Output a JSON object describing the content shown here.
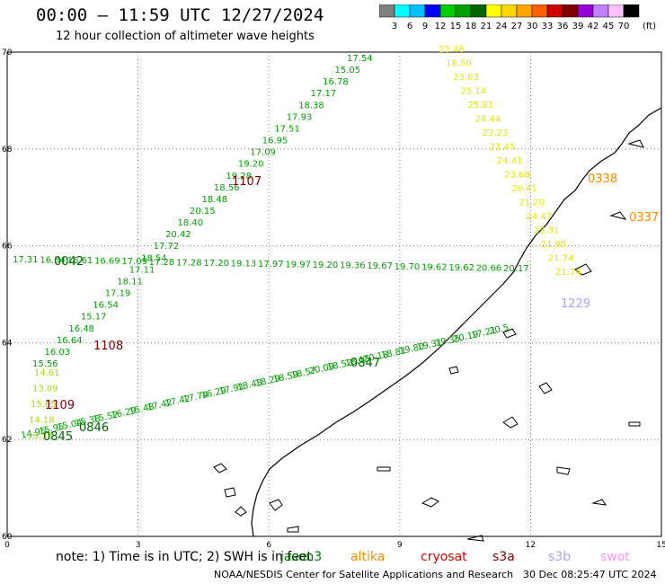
{
  "header": {
    "title": "00:00 – 11:59 UTC 12/27/2024",
    "subtitle": "12 hour collection of altimeter wave heights"
  },
  "colorbar": {
    "ticks": [
      "3",
      "6",
      "9",
      "12",
      "15",
      "18",
      "21",
      "24",
      "27",
      "30",
      "33",
      "36",
      "39",
      "42",
      "45",
      "70"
    ],
    "unit": "(ft)",
    "colors": [
      "#808080",
      "#00ffff",
      "#00bfff",
      "#0000ff",
      "#00cc00",
      "#00a000",
      "#006400",
      "#ffff00",
      "#ffd700",
      "#ffa500",
      "#ff6000",
      "#cc0000",
      "#800000",
      "#9400d3",
      "#c080ff",
      "#ffc0ff",
      "#000000"
    ]
  },
  "axes": {
    "x_ticks": [
      "0",
      "3",
      "6",
      "9",
      "12",
      "15"
    ],
    "y_ticks": [
      "70",
      "68",
      "66",
      "64",
      "62",
      "60"
    ]
  },
  "map": {
    "tracks": [
      {
        "color": "#00a000",
        "labels": [
          "17.54",
          "15.05",
          "16.78",
          "17.17",
          "18.38",
          "17.93",
          "17.51",
          "16.95",
          "17.09",
          "19.20",
          "19.28",
          "18.56",
          "18.48",
          "20.15",
          "18.40",
          "20.42",
          "17.72",
          "18.54",
          "17.11",
          "18.11",
          "17.19",
          "16.54",
          "15.17",
          "16.48",
          "16.64",
          "16.03",
          "15.56"
        ]
      },
      {
        "color": "#00a000",
        "labels": [
          "17.31",
          "16.34",
          "16.61",
          "16.69",
          "17.09",
          "17.28",
          "17.28",
          "17.20",
          "19.13",
          "17.97",
          "19.97",
          "19.20",
          "19.36",
          "19.67",
          "19.70",
          "19.62",
          "19.62",
          "20.66",
          "20.17"
        ]
      },
      {
        "color": "#00a000",
        "labels": [
          "14.95",
          "15.95",
          "15.04",
          "15.36",
          "15.52",
          "16.29",
          "15.48",
          "17.42",
          "17.42",
          "17.74",
          "16.29",
          "17.91",
          "18.43",
          "18.29",
          "18.59",
          "18.57",
          "20.09",
          "18.52",
          "18.15",
          "20.18",
          "18.81",
          "19.80",
          "19.31",
          "19.35",
          "20.19",
          "17.21",
          "20.5"
        ]
      },
      {
        "color": "#e6e600",
        "labels": [
          "22.48",
          "18.50",
          "23.63",
          "25.14",
          "25.81",
          "24.44",
          "23.23",
          "21.45",
          "24.41",
          "23.68",
          "20.41",
          "21.20",
          "24.47",
          "23.31",
          "21.95",
          "21.74",
          "21.74"
        ]
      },
      {
        "color": "#a0e000",
        "labels": [
          "14.61",
          "13.09",
          "15.65",
          "14.18",
          "13.35"
        ]
      }
    ],
    "pass_times": [
      {
        "text": "1107",
        "color": "#800000"
      },
      {
        "text": "1108",
        "color": "#800000"
      },
      {
        "text": "1109",
        "color": "#800000"
      },
      {
        "text": "0845",
        "color": "#006400"
      },
      {
        "text": "0846",
        "color": "#006400"
      },
      {
        "text": "0847",
        "color": "#006400"
      },
      {
        "text": "0042",
        "color": "#006400"
      },
      {
        "text": "0338",
        "color": "#ff8c00"
      },
      {
        "text": "0337",
        "color": "#ff8c00"
      },
      {
        "text": "1229",
        "color": "#b0a0ff"
      }
    ]
  },
  "footer": {
    "note": "note:  1) Time is in UTC;  2) SWH is in feet",
    "satellites": [
      {
        "name": "jason3",
        "color": "#008000"
      },
      {
        "name": "altika",
        "color": "#ff8c00"
      },
      {
        "name": "cryosat",
        "color": "#e00000"
      },
      {
        "name": "s3a",
        "color": "#800000"
      },
      {
        "name": "s3b",
        "color": "#b0a0ff"
      },
      {
        "name": "swot",
        "color": "#ff90ff"
      }
    ],
    "credit": "NOAA/NESDIS Center for Satellite Applications and Research",
    "timestamp": "30 Dec 08:25:47 UTC 2024"
  }
}
